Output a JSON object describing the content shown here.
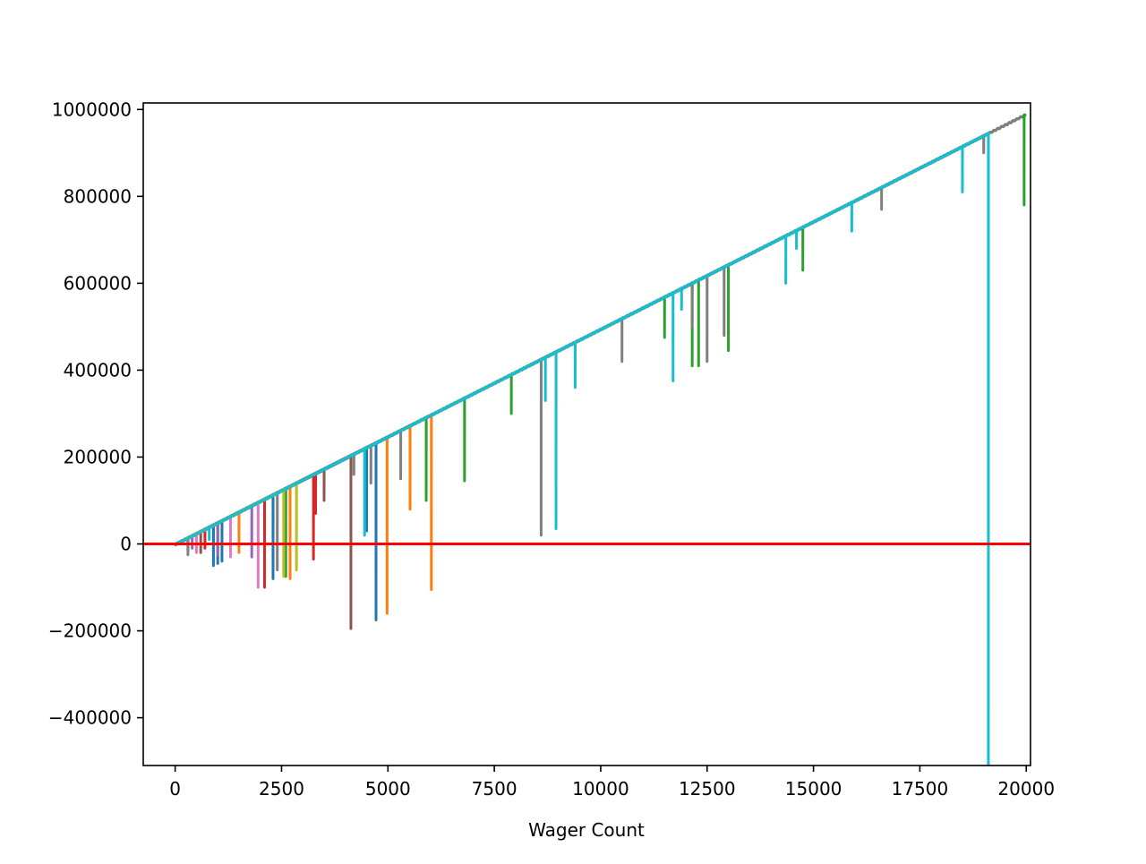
{
  "chart_data": {
    "type": "line",
    "title": "",
    "xlabel": "Wager Count",
    "ylabel": "",
    "xlim": [
      -750,
      20100
    ],
    "ylim": [
      -510000,
      1015000
    ],
    "x_ticks": [
      0,
      2500,
      5000,
      7500,
      10000,
      12500,
      15000,
      17500,
      20000
    ],
    "x_tick_labels": [
      "0",
      "2500",
      "5000",
      "7500",
      "10000",
      "12500",
      "15000",
      "17500",
      "20000"
    ],
    "y_ticks": [
      -400000,
      -200000,
      0,
      200000,
      400000,
      600000,
      800000,
      1000000
    ],
    "y_tick_labels": [
      "−400000",
      "−200000",
      "0",
      "200000",
      "400000",
      "600000",
      "800000",
      "1000000"
    ],
    "grid": false,
    "legend": "none",
    "reference_line": {
      "y": 0,
      "color": "#ff0000"
    },
    "trend": {
      "slope_per_wager": 49.5,
      "intercept": 0
    },
    "colors": [
      "#1f77b4",
      "#ff7f0e",
      "#2ca02c",
      "#d62728",
      "#9467bd",
      "#8c564b",
      "#e377c2",
      "#7f7f7f",
      "#bcbd22",
      "#17becf"
    ],
    "series": [
      {
        "color": "#1f77b4",
        "x_end": 4760,
        "drops": [
          [
            900,
            -50000
          ],
          [
            1000,
            -45000
          ],
          [
            1100,
            -40000
          ],
          [
            2300,
            -80000
          ],
          [
            4500,
            30000
          ],
          [
            4720,
            -175000
          ]
        ]
      },
      {
        "color": "#ff7f0e",
        "x_end": 6050,
        "drops": [
          [
            1500,
            -20000
          ],
          [
            2700,
            -80000
          ],
          [
            4980,
            -160000
          ],
          [
            5520,
            80000
          ],
          [
            6020,
            -105000
          ]
        ]
      },
      {
        "color": "#2ca02c",
        "x_end": 20000,
        "drops": [
          [
            2600,
            -75000
          ],
          [
            5900,
            100000
          ],
          [
            6800,
            145000
          ],
          [
            7900,
            300000
          ],
          [
            11500,
            475000
          ],
          [
            12150,
            410000
          ],
          [
            12300,
            410000
          ],
          [
            13000,
            445000
          ],
          [
            14750,
            630000
          ],
          [
            19950,
            780000
          ]
        ]
      },
      {
        "color": "#d62728",
        "x_end": 4140,
        "drops": [
          [
            300,
            -15000
          ],
          [
            700,
            -10000
          ],
          [
            2100,
            -100000
          ],
          [
            3250,
            -35000
          ],
          [
            3300,
            70000
          ]
        ]
      },
      {
        "color": "#9467bd",
        "x_end": 3200,
        "drops": [
          [
            400,
            -10000
          ],
          [
            1000,
            -25000
          ],
          [
            1800,
            -30000
          ]
        ]
      },
      {
        "color": "#8c564b",
        "x_end": 4150,
        "drops": [
          [
            600,
            -20000
          ],
          [
            3500,
            100000
          ],
          [
            4130,
            -195000
          ]
        ]
      },
      {
        "color": "#e377c2",
        "x_end": 2000,
        "drops": [
          [
            500,
            -20000
          ],
          [
            1300,
            -30000
          ],
          [
            1950,
            -100000
          ]
        ]
      },
      {
        "color": "#7f7f7f",
        "x_end": 19900,
        "drops": [
          [
            300,
            -25000
          ],
          [
            2400,
            -60000
          ],
          [
            4200,
            160000
          ],
          [
            4600,
            140000
          ],
          [
            5300,
            150000
          ],
          [
            8600,
            20000
          ],
          [
            10500,
            420000
          ],
          [
            12150,
            500000
          ],
          [
            12500,
            420000
          ],
          [
            12900,
            480000
          ],
          [
            16600,
            770000
          ],
          [
            19000,
            900000
          ]
        ]
      },
      {
        "color": "#bcbd22",
        "x_end": 2900,
        "drops": [
          [
            2550,
            -75000
          ],
          [
            2850,
            -60000
          ]
        ]
      },
      {
        "color": "#17becf",
        "x_end": 19150,
        "drops": [
          [
            100,
            5000
          ],
          [
            800,
            10000
          ],
          [
            4450,
            20000
          ],
          [
            8700,
            330000
          ],
          [
            8950,
            35000
          ],
          [
            9400,
            360000
          ],
          [
            11700,
            375000
          ],
          [
            11900,
            540000
          ],
          [
            14350,
            600000
          ],
          [
            14600,
            680000
          ],
          [
            15900,
            720000
          ],
          [
            18500,
            810000
          ],
          [
            19110,
            -520000
          ]
        ]
      }
    ]
  }
}
